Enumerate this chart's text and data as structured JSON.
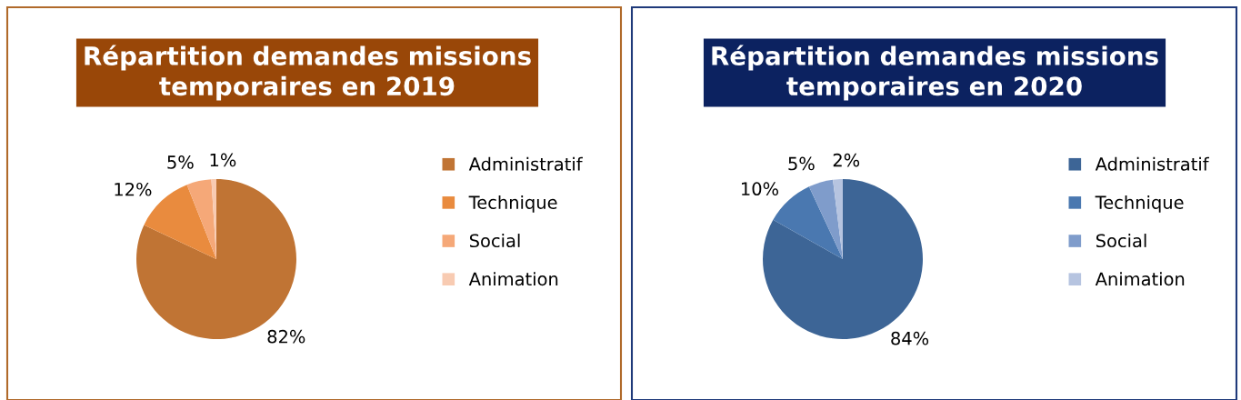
{
  "chart_data": [
    {
      "type": "pie",
      "title": "Répartition demandes missions temporaires en 2019",
      "categories": [
        "Administratif",
        "Technique",
        "Social",
        "Animation"
      ],
      "values": [
        82,
        12,
        5,
        1
      ],
      "value_labels": [
        "82%",
        "12%",
        "5%",
        "1%"
      ],
      "colors": [
        "#c07434",
        "#e98b3e",
        "#f5a878",
        "#f8cbb2"
      ],
      "legend": "right"
    },
    {
      "type": "pie",
      "title": "Répartition demandes missions temporaires en 2020",
      "categories": [
        "Administratif",
        "Technique",
        "Social",
        "Animation"
      ],
      "values": [
        84,
        10,
        5,
        2
      ],
      "value_labels": [
        "84%",
        "10%",
        "5%",
        "2%"
      ],
      "colors": [
        "#3d6596",
        "#4a78b0",
        "#7f9ccb",
        "#b6c4e0"
      ],
      "legend": "right"
    }
  ]
}
